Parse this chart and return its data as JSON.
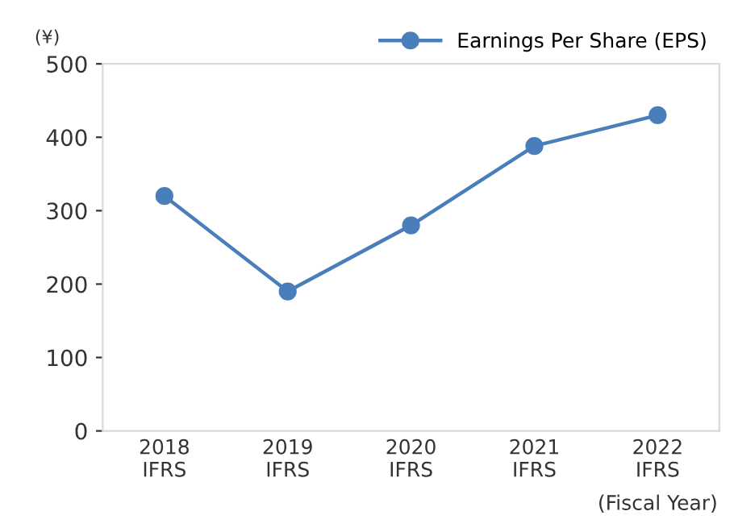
{
  "chart_data": {
    "type": "line",
    "ylabel": "(¥)",
    "xlabel": "(Fiscal Year)",
    "categories": [
      "2018\nIFRS",
      "2019\nIFRS",
      "2020\nIFRS",
      "2021\nIFRS",
      "2022\nIFRS"
    ],
    "series": [
      {
        "name": "Earnings Per Share (EPS)",
        "color": "#4a7ebb",
        "values": [
          320,
          190,
          280,
          388,
          430
        ]
      }
    ],
    "ylim": [
      0,
      500
    ],
    "yticks": [
      0,
      100,
      200,
      300,
      400,
      500
    ],
    "grid": false,
    "legend": "top right",
    "marker": "circle",
    "line_style": "solid"
  }
}
